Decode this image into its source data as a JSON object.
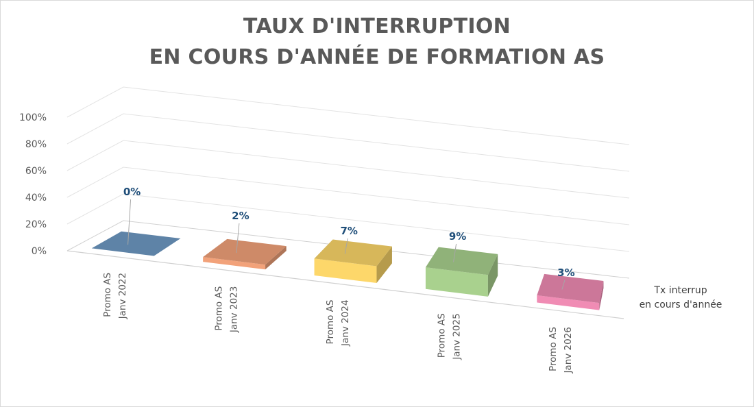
{
  "chart_data": {
    "type": "bar",
    "title_lines": [
      "TAUX D'INTERRUPTION",
      "EN COURS D'ANNÉE DE FORMATION AS"
    ],
    "categories": [
      [
        "Promo AS",
        "Janv 2022"
      ],
      [
        "Promo AS",
        "Janv 2023"
      ],
      [
        "Promo AS",
        "Janv 2024"
      ],
      [
        "Promo AS",
        "Janv 2025"
      ],
      [
        "Promo AS",
        "Janv 2026"
      ]
    ],
    "series": [
      {
        "name_lines": [
          "Tx interrup",
          "en cours d'année"
        ],
        "values": [
          0,
          2,
          7,
          9,
          3
        ]
      }
    ],
    "data_labels": [
      "0%",
      "2%",
      "7%",
      "9%",
      "3%"
    ],
    "y_ticks": [
      "0%",
      "20%",
      "40%",
      "60%",
      "80%",
      "100%"
    ],
    "ylim": [
      0,
      100
    ],
    "grid": true,
    "legend_position": "right",
    "bar_colors": [
      "#6f9ac5",
      "#f2a27a",
      "#fdd76a",
      "#a9d18e",
      "#f08cb4"
    ]
  }
}
